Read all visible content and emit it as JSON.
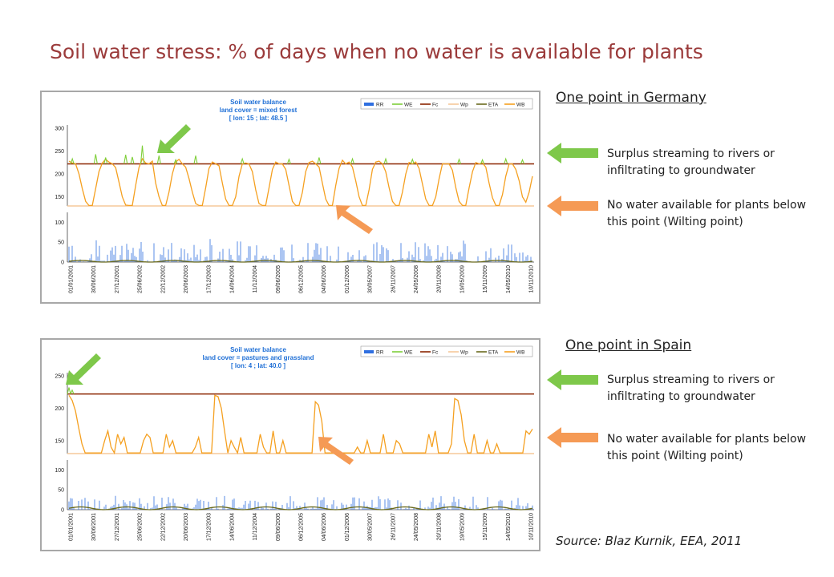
{
  "title": "Soil water stress: % of days when no water is available for plants",
  "source": "Source: Blaz Kurnik, EEA, 2011",
  "colors": {
    "RR": "#2f6fe0",
    "WE": "#7fcf3a",
    "Fc": "#8b2500",
    "Wp": "#f5c89a",
    "ETA": "#6b6b1e",
    "WB": "#f5a020",
    "title": "#9b3b3b"
  },
  "annotations": {
    "surplus": "Surplus streaming to rivers or infiltrating to groundwater",
    "wilting": "No water available for plants below this point (Wilting point)"
  },
  "chart_data": [
    {
      "heading": "One point in Germany",
      "type": "line",
      "title_lines": [
        "Soil water balance",
        "land cover = mixed forest",
        "[ lon: 15 ;  lat: 48.5 ]"
      ],
      "legend": [
        "RR",
        "WE",
        "Fc",
        "Wp",
        "ETA",
        "WB"
      ],
      "upper_ticks": [
        150,
        200,
        250,
        300
      ],
      "lower_ticks": [
        0,
        50,
        100
      ],
      "upper_ylim": [
        130,
        300
      ],
      "lower_ylim": [
        0,
        125
      ],
      "fc": 222,
      "wp": 130,
      "x_labels": [
        "01/01/2001",
        "30/06/2001",
        "27/12/2001",
        "25/06/2002",
        "22/12/2002",
        "20/06/2003",
        "17/12/2003",
        "14/06/2004",
        "11/12/2004",
        "09/06/2005",
        "06/12/2005",
        "04/06/2006",
        "01/12/2006",
        "30/05/2007",
        "26/11/2007",
        "24/05/2008",
        "20/11/2008",
        "19/05/2009",
        "15/11/2009",
        "14/05/2010",
        "10/11/2010"
      ],
      "wb_series": [
        228,
        224,
        222,
        200,
        168,
        140,
        131,
        131,
        168,
        205,
        224,
        232,
        226,
        222,
        214,
        182,
        150,
        132,
        131,
        131,
        175,
        214,
        233,
        224,
        222,
        228,
        180,
        150,
        131,
        131,
        160,
        200,
        226,
        232,
        222,
        215,
        190,
        160,
        135,
        131,
        131,
        170,
        212,
        226,
        222,
        218,
        180,
        145,
        131,
        131,
        150,
        195,
        222,
        224,
        222,
        205,
        165,
        135,
        131,
        131,
        170,
        210,
        226,
        222,
        222,
        210,
        175,
        140,
        131,
        131,
        160,
        205,
        225,
        228,
        222,
        215,
        180,
        145,
        131,
        131,
        175,
        212,
        230,
        222,
        226,
        215,
        185,
        150,
        131,
        131,
        165,
        210,
        226,
        228,
        222,
        205,
        170,
        140,
        131,
        131,
        160,
        200,
        225,
        222,
        226,
        212,
        178,
        145,
        131,
        131,
        150,
        190,
        222,
        222,
        222,
        208,
        170,
        140,
        131,
        131,
        170,
        205,
        225,
        222,
        224,
        215,
        180,
        148,
        131,
        131,
        155,
        195,
        222,
        222,
        210,
        185,
        150,
        138,
        160,
        195
      ],
      "we_peaks": [
        [
          1,
          233
        ],
        [
          8,
          243
        ],
        [
          11,
          236
        ],
        [
          17,
          242
        ],
        [
          19,
          237
        ],
        [
          22,
          262
        ],
        [
          27,
          240
        ],
        [
          32,
          231
        ],
        [
          38,
          240
        ],
        [
          52,
          233
        ],
        [
          66,
          232
        ],
        [
          75,
          236
        ],
        [
          85,
          233
        ],
        [
          95,
          233
        ],
        [
          103,
          232
        ],
        [
          117,
          232
        ],
        [
          124,
          231
        ],
        [
          131,
          233
        ],
        [
          136,
          231
        ]
      ],
      "rr_max": 55,
      "eta_level": 4
    },
    {
      "heading": "One point in Spain",
      "type": "line",
      "title_lines": [
        "Soil water balance",
        "land cover = pastures and grassland",
        "[ lon: 4 ;  lat: 40.0 ]"
      ],
      "legend": [
        "RR",
        "WE",
        "Fc",
        "Wp",
        "ETA",
        "WB"
      ],
      "upper_ticks": [
        150,
        200,
        250
      ],
      "lower_ticks": [
        0,
        50,
        100
      ],
      "upper_ylim": [
        130,
        250
      ],
      "lower_ylim": [
        0,
        125
      ],
      "fc": 222,
      "wp": 130,
      "x_labels": [
        "01/01/2001",
        "30/06/2001",
        "27/12/2001",
        "25/06/2002",
        "22/12/2002",
        "20/06/2003",
        "17/12/2003",
        "14/06/2004",
        "11/12/2004",
        "09/06/2005",
        "06/12/2005",
        "04/06/2006",
        "01/12/2006",
        "30/05/2007",
        "26/11/2007",
        "24/05/2008",
        "20/11/2008",
        "19/05/2009",
        "15/11/2009",
        "14/05/2010",
        "10/11/2010"
      ],
      "wb_series": [
        220,
        212,
        196,
        170,
        145,
        131,
        131,
        131,
        131,
        131,
        131,
        150,
        165,
        140,
        131,
        160,
        145,
        155,
        131,
        131,
        131,
        131,
        131,
        150,
        160,
        155,
        131,
        131,
        131,
        131,
        160,
        140,
        150,
        131,
        131,
        131,
        131,
        131,
        131,
        140,
        155,
        131,
        131,
        131,
        131,
        220,
        218,
        200,
        165,
        131,
        150,
        140,
        131,
        155,
        131,
        131,
        131,
        131,
        131,
        160,
        140,
        131,
        131,
        165,
        131,
        131,
        150,
        131,
        131,
        131,
        131,
        131,
        131,
        131,
        131,
        131,
        210,
        205,
        180,
        131,
        131,
        131,
        131,
        131,
        131,
        131,
        131,
        131,
        131,
        140,
        131,
        131,
        150,
        131,
        131,
        131,
        131,
        160,
        131,
        131,
        131,
        150,
        145,
        131,
        131,
        131,
        131,
        131,
        131,
        131,
        131,
        160,
        140,
        165,
        131,
        131,
        131,
        131,
        145,
        215,
        212,
        190,
        150,
        131,
        131,
        160,
        131,
        131,
        131,
        150,
        131,
        131,
        145,
        131,
        131,
        131,
        131,
        131,
        131,
        131,
        131,
        165,
        160,
        168
      ],
      "we_peaks": [
        [
          0,
          232
        ],
        [
          1,
          228
        ]
      ],
      "rr_max": 35,
      "eta_level": 7
    }
  ]
}
